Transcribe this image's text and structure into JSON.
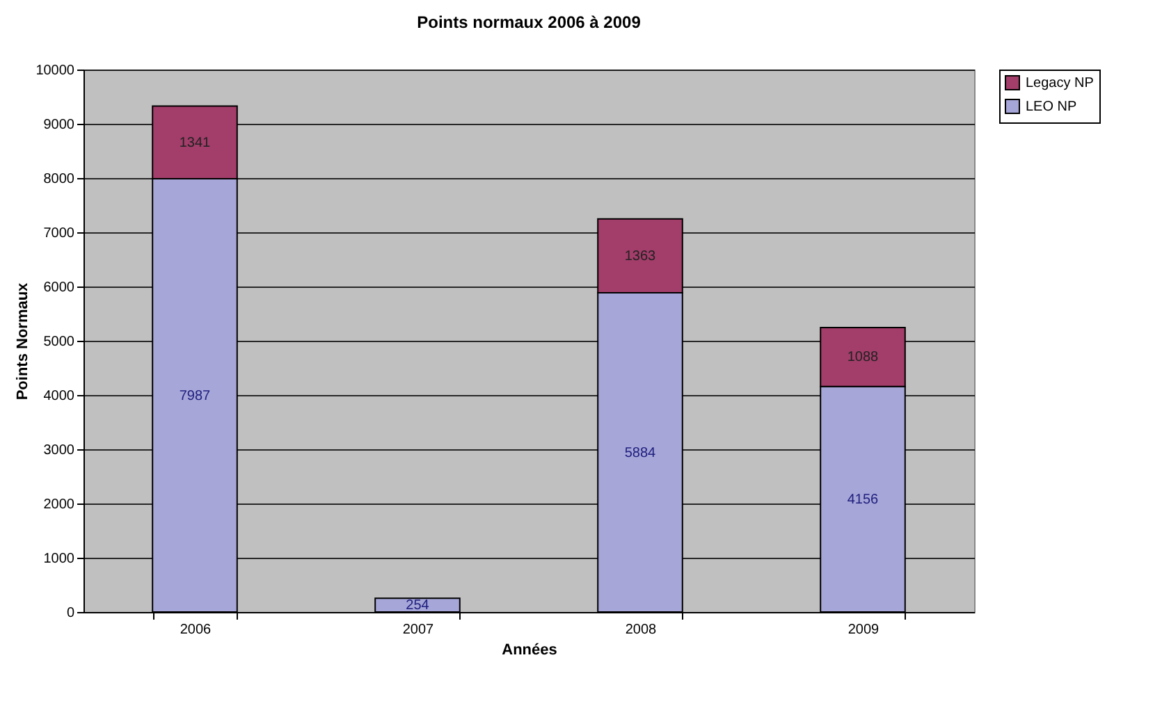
{
  "chart_data": {
    "type": "bar",
    "title": "Points normaux 2006 à 2009",
    "xlabel": "Années",
    "ylabel": "Points Normaux",
    "categories": [
      "2006",
      "2007",
      "2008",
      "2009"
    ],
    "series": [
      {
        "name": "LEO NP",
        "color": "#a6a6d8",
        "values": [
          7987,
          254,
          5884,
          4156
        ]
      },
      {
        "name": "Legacy NP",
        "color": "#a33d6a",
        "values": [
          1341,
          null,
          1363,
          1088
        ]
      }
    ],
    "stacked": true,
    "ylim": [
      0,
      10000
    ],
    "yticks": [
      0,
      1000,
      2000,
      3000,
      4000,
      5000,
      6000,
      7000,
      8000,
      9000,
      10000
    ],
    "grid": "y",
    "legend": "right",
    "data_labels": true
  }
}
